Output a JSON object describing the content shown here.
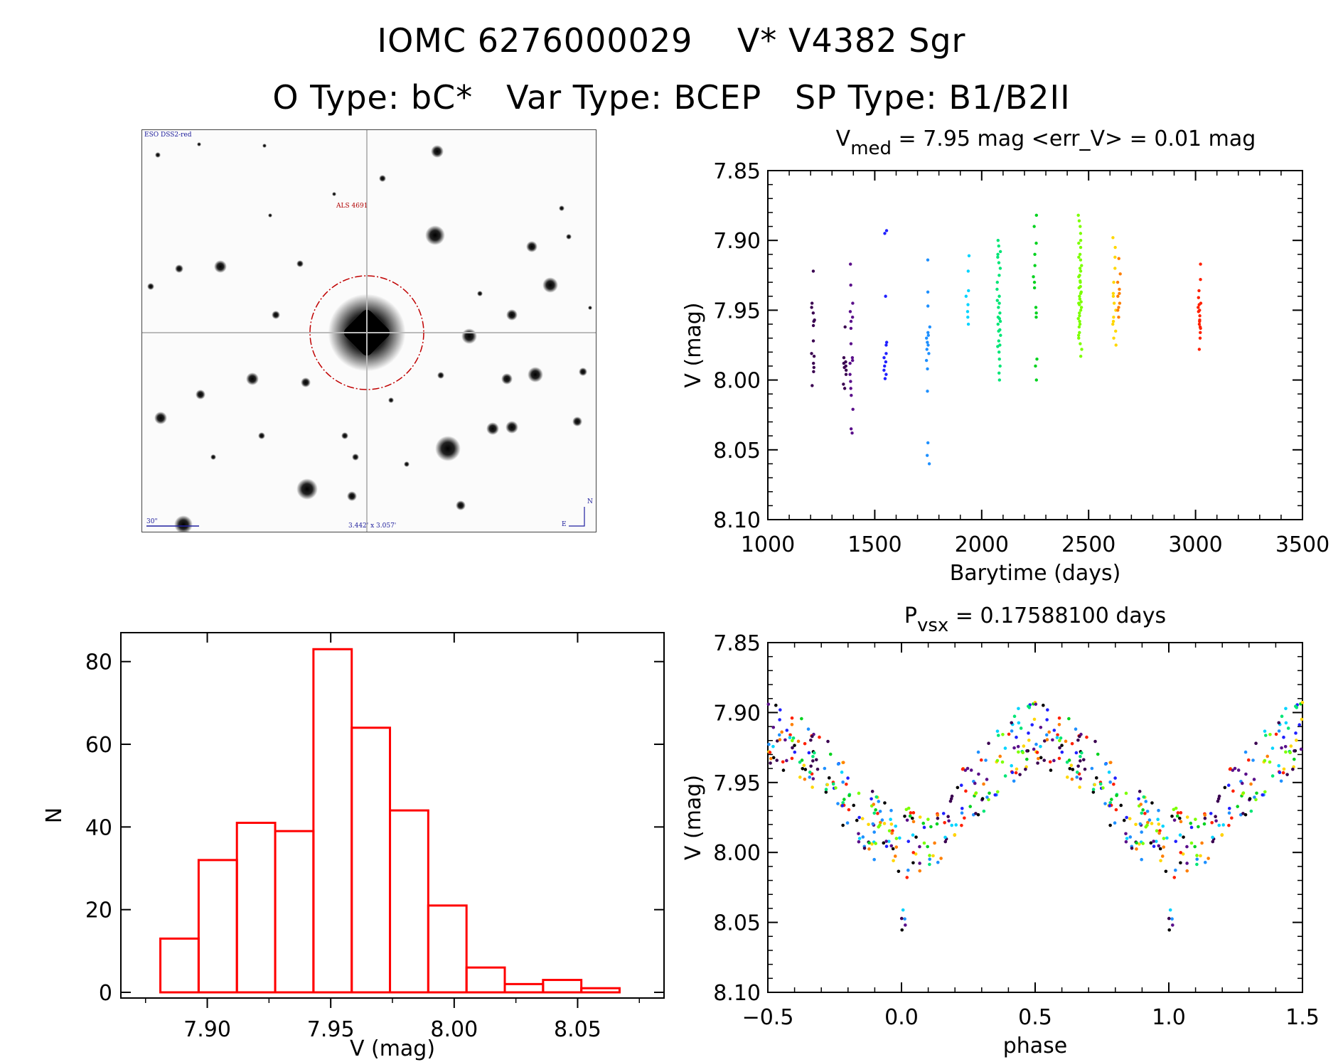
{
  "header": {
    "line1": "IOMC 6276000029    V* V4382 Sgr",
    "line2": "O Type: bC*   Var Type: BCEP   SP Type: B1/B2II"
  },
  "finder": {
    "survey_label": "ESO DSS2-red",
    "object_label": "ALS 4691",
    "scale_label": "30\"",
    "fov_label": "3.442' x 3.057'",
    "north_label": "N",
    "east_label": "E"
  },
  "colors": {
    "histogram": "#ff0000",
    "circle": "#c00000",
    "palette": [
      "#3a0050",
      "#5a0f8a",
      "#2020ff",
      "#1e90ff",
      "#00d4ff",
      "#00e676",
      "#00d21e",
      "#7cff00",
      "#ffd700",
      "#ff7f00",
      "#ff2000",
      "#000000"
    ]
  },
  "chart_data": [
    {
      "id": "lightcurve",
      "type": "scatter",
      "title": "V_med = 7.95 mag <err_V> = 0.01 mag",
      "title_main": "V",
      "title_sub": "med",
      "title_rest": " = 7.95 mag <err_V> = 0.01 mag",
      "xlabel": "Barytime (days)",
      "ylabel": "V (mag)",
      "xlim": [
        1000,
        3500
      ],
      "ylim": [
        8.1,
        7.85
      ],
      "xticks": [
        "1000",
        "1500",
        "2000",
        "2500",
        "3000",
        "3500"
      ],
      "xtick_values": [
        1000,
        1500,
        2000,
        2500,
        3000,
        3500
      ],
      "yticks": [
        "7.85",
        "7.90",
        "7.95",
        "8.00",
        "8.05",
        "8.10"
      ],
      "ytick_values": [
        7.85,
        7.9,
        7.95,
        8.0,
        8.05,
        8.1
      ],
      "groups": [
        {
          "x": 1210,
          "color": "#3a0050",
          "points": [
            [
              1210,
              7.922
            ],
            [
              1210,
              7.945
            ],
            [
              1210,
              7.952
            ],
            [
              1210,
              7.957
            ],
            [
              1210,
              7.961
            ],
            [
              1210,
              7.972
            ],
            [
              1210,
              7.981
            ],
            [
              1210,
              7.983
            ],
            [
              1210,
              7.988
            ],
            [
              1210,
              7.991
            ],
            [
              1210,
              7.994
            ],
            [
              1210,
              8.004
            ],
            [
              1210,
              7.958
            ],
            [
              1210,
              7.948
            ]
          ]
        },
        {
          "x": 1360,
          "color": "#3a0050",
          "points": [
            [
              1360,
              7.962
            ],
            [
              1360,
              7.984
            ],
            [
              1360,
              7.988
            ],
            [
              1360,
              7.99
            ],
            [
              1360,
              7.993
            ],
            [
              1360,
              7.996
            ],
            [
              1360,
              8.003
            ],
            [
              1360,
              8.006
            ],
            [
              1360,
              7.987
            ],
            [
              1360,
              7.991
            ]
          ]
        },
        {
          "x": 1390,
          "color": "#5a0f8a",
          "points": [
            [
              1390,
              7.917
            ],
            [
              1390,
              7.932
            ],
            [
              1390,
              7.945
            ],
            [
              1390,
              7.955
            ],
            [
              1390,
              7.963
            ],
            [
              1390,
              7.974
            ],
            [
              1390,
              7.984
            ],
            [
              1390,
              7.988
            ],
            [
              1390,
              7.996
            ],
            [
              1390,
              8.001
            ],
            [
              1390,
              8.006
            ],
            [
              1390,
              8.011
            ],
            [
              1390,
              8.021
            ],
            [
              1390,
              8.035
            ],
            [
              1390,
              8.038
            ],
            [
              1390,
              7.951
            ],
            [
              1390,
              7.958
            ],
            [
              1390,
              7.986
            ]
          ]
        },
        {
          "x": 1550,
          "color": "#2020ff",
          "points": [
            [
              1550,
              7.893
            ],
            [
              1550,
              7.895
            ],
            [
              1550,
              7.94
            ],
            [
              1550,
              7.973
            ],
            [
              1550,
              7.975
            ],
            [
              1550,
              7.984
            ],
            [
              1550,
              7.987
            ],
            [
              1550,
              7.993
            ],
            [
              1550,
              7.996
            ],
            [
              1550,
              7.999
            ],
            [
              1550,
              7.981
            ],
            [
              1550,
              7.99
            ]
          ]
        },
        {
          "x": 1750,
          "color": "#1e90ff",
          "points": [
            [
              1750,
              7.914
            ],
            [
              1750,
              7.937
            ],
            [
              1750,
              7.947
            ],
            [
              1750,
              7.962
            ],
            [
              1750,
              7.966
            ],
            [
              1750,
              7.97
            ],
            [
              1750,
              7.973
            ],
            [
              1750,
              7.978
            ],
            [
              1750,
              7.981
            ],
            [
              1750,
              7.986
            ],
            [
              1750,
              7.992
            ],
            [
              1750,
              8.008
            ],
            [
              1750,
              8.045
            ],
            [
              1750,
              8.054
            ],
            [
              1750,
              8.06
            ],
            [
              1750,
              7.975
            ],
            [
              1750,
              7.968
            ]
          ]
        },
        {
          "x": 1935,
          "color": "#00d4ff",
          "points": [
            [
              1935,
              7.911
            ],
            [
              1935,
              7.922
            ],
            [
              1935,
              7.936
            ],
            [
              1935,
              7.94
            ],
            [
              1935,
              7.946
            ],
            [
              1935,
              7.951
            ],
            [
              1935,
              7.955
            ],
            [
              1935,
              7.96
            ]
          ]
        },
        {
          "x": 2080,
          "color": "#00e676",
          "points": [
            [
              2080,
              7.9
            ],
            [
              2080,
              7.904
            ],
            [
              2080,
              7.908
            ],
            [
              2080,
              7.912
            ],
            [
              2080,
              7.916
            ],
            [
              2080,
              7.92
            ],
            [
              2080,
              7.925
            ],
            [
              2080,
              7.935
            ],
            [
              2080,
              7.94
            ],
            [
              2080,
              7.945
            ],
            [
              2080,
              7.948
            ],
            [
              2080,
              7.952
            ],
            [
              2080,
              7.956
            ],
            [
              2080,
              7.96
            ],
            [
              2080,
              7.964
            ],
            [
              2080,
              7.968
            ],
            [
              2080,
              7.972
            ],
            [
              2080,
              7.976
            ],
            [
              2080,
              7.98
            ],
            [
              2080,
              7.985
            ],
            [
              2080,
              7.99
            ],
            [
              2080,
              7.995
            ],
            [
              2080,
              8.0
            ],
            [
              2080,
              7.943
            ],
            [
              2080,
              7.958
            ],
            [
              2080,
              7.93
            ],
            [
              2080,
              7.91
            ],
            [
              2080,
              7.965
            ],
            [
              2080,
              7.975
            ],
            [
              2080,
              7.955
            ]
          ]
        },
        {
          "x": 2250,
          "color": "#00d21e",
          "points": [
            [
              2250,
              7.882
            ],
            [
              2250,
              7.89
            ],
            [
              2250,
              7.902
            ],
            [
              2250,
              7.91
            ],
            [
              2250,
              7.918
            ],
            [
              2250,
              7.926
            ],
            [
              2250,
              7.934
            ],
            [
              2250,
              7.948
            ],
            [
              2250,
              7.952
            ],
            [
              2250,
              7.955
            ],
            [
              2250,
              7.985
            ],
            [
              2250,
              7.99
            ],
            [
              2250,
              8.0
            ],
            [
              2250,
              7.93
            ]
          ]
        },
        {
          "x": 2460,
          "color": "#7cff00",
          "points": [
            [
              2460,
              7.882
            ],
            [
              2460,
              7.886
            ],
            [
              2460,
              7.89
            ],
            [
              2460,
              7.895
            ],
            [
              2460,
              7.9
            ],
            [
              2460,
              7.905
            ],
            [
              2460,
              7.91
            ],
            [
              2460,
              7.914
            ],
            [
              2460,
              7.918
            ],
            [
              2460,
              7.922
            ],
            [
              2460,
              7.926
            ],
            [
              2460,
              7.93
            ],
            [
              2460,
              7.934
            ],
            [
              2460,
              7.938
            ],
            [
              2460,
              7.942
            ],
            [
              2460,
              7.946
            ],
            [
              2460,
              7.95
            ],
            [
              2460,
              7.954
            ],
            [
              2460,
              7.958
            ],
            [
              2460,
              7.962
            ],
            [
              2460,
              7.966
            ],
            [
              2460,
              7.97
            ],
            [
              2460,
              7.974
            ],
            [
              2460,
              7.978
            ],
            [
              2460,
              7.983
            ],
            [
              2460,
              7.929
            ],
            [
              2460,
              7.937
            ],
            [
              2460,
              7.944
            ],
            [
              2460,
              7.952
            ],
            [
              2460,
              7.96
            ],
            [
              2460,
              7.92
            ],
            [
              2460,
              7.912
            ],
            [
              2460,
              7.948
            ],
            [
              2460,
              7.94
            ],
            [
              2460,
              7.956
            ],
            [
              2460,
              7.933
            ],
            [
              2460,
              7.925
            ],
            [
              2460,
              7.968
            ],
            [
              2460,
              7.902
            ],
            [
              2460,
              7.945
            ]
          ]
        },
        {
          "x": 2620,
          "color": "#ffd700",
          "points": [
            [
              2620,
              7.898
            ],
            [
              2620,
              7.905
            ],
            [
              2620,
              7.912
            ],
            [
              2620,
              7.92
            ],
            [
              2620,
              7.93
            ],
            [
              2620,
              7.938
            ],
            [
              2620,
              7.945
            ],
            [
              2620,
              7.95
            ],
            [
              2620,
              7.955
            ],
            [
              2620,
              7.96
            ],
            [
              2620,
              7.965
            ],
            [
              2620,
              7.97
            ],
            [
              2620,
              7.975
            ],
            [
              2620,
              7.94
            ],
            [
              2620,
              7.958
            ]
          ]
        },
        {
          "x": 2640,
          "color": "#ff7f00",
          "points": [
            [
              2640,
              7.913
            ],
            [
              2640,
              7.924
            ],
            [
              2640,
              7.93
            ],
            [
              2640,
              7.935
            ],
            [
              2640,
              7.94
            ],
            [
              2640,
              7.945
            ],
            [
              2640,
              7.95
            ],
            [
              2640,
              7.955
            ],
            [
              2640,
              7.938
            ],
            [
              2640,
              7.948
            ]
          ]
        },
        {
          "x": 3020,
          "color": "#ff2000",
          "points": [
            [
              3020,
              7.917
            ],
            [
              3020,
              7.928
            ],
            [
              3020,
              7.936
            ],
            [
              3020,
              7.941
            ],
            [
              3020,
              7.945
            ],
            [
              3020,
              7.948
            ],
            [
              3020,
              7.951
            ],
            [
              3020,
              7.954
            ],
            [
              3020,
              7.957
            ],
            [
              3020,
              7.96
            ],
            [
              3020,
              7.963
            ],
            [
              3020,
              7.966
            ],
            [
              3020,
              7.97
            ],
            [
              3020,
              7.978
            ],
            [
              3020,
              7.95
            ],
            [
              3020,
              7.958
            ],
            [
              3020,
              7.962
            ],
            [
              3020,
              7.946
            ]
          ]
        }
      ]
    },
    {
      "id": "histogram",
      "type": "bar",
      "title": "",
      "xlabel": "V (mag)",
      "ylabel": "N",
      "xlim": [
        7.865,
        8.085
      ],
      "ylim": [
        0,
        87
      ],
      "xticks": [
        "7.90",
        "7.95",
        "8.00",
        "8.05"
      ],
      "xtick_values": [
        7.9,
        7.95,
        8.0,
        8.05
      ],
      "yticks": [
        "0",
        "20",
        "40",
        "60",
        "80"
      ],
      "ytick_values": [
        0,
        20,
        40,
        60,
        80
      ],
      "bin_edges": [
        7.881,
        7.8965,
        7.912,
        7.9275,
        7.943,
        7.9585,
        7.974,
        7.9895,
        8.005,
        8.0205,
        8.036,
        8.0515,
        8.067
      ],
      "values": [
        13,
        32,
        41,
        39,
        83,
        64,
        44,
        21,
        6,
        2,
        3,
        1
      ]
    },
    {
      "id": "phased",
      "type": "scatter",
      "title": "P_vsx = 0.17588100 days",
      "title_main": "P",
      "title_sub": "vsx",
      "title_rest": " = 0.17588100 days",
      "xlabel": "phase",
      "ylabel": "V (mag)",
      "xlim": [
        -0.5,
        1.5
      ],
      "ylim": [
        8.1,
        7.85
      ],
      "xticks": [
        "−0.5",
        "0.0",
        "0.5",
        "1.0",
        "1.5"
      ],
      "xtick_values": [
        -0.5,
        0.0,
        0.5,
        1.0,
        1.5
      ],
      "yticks": [
        "7.85",
        "7.90",
        "7.95",
        "8.00",
        "8.05",
        "8.10"
      ],
      "ytick_values": [
        7.85,
        7.9,
        7.95,
        8.0,
        8.05,
        8.1
      ],
      "curve_model": {
        "mean": 7.955,
        "amplitude": 0.038,
        "min_phase": 0.02,
        "scatter": 0.025,
        "n_points": 290
      }
    }
  ]
}
